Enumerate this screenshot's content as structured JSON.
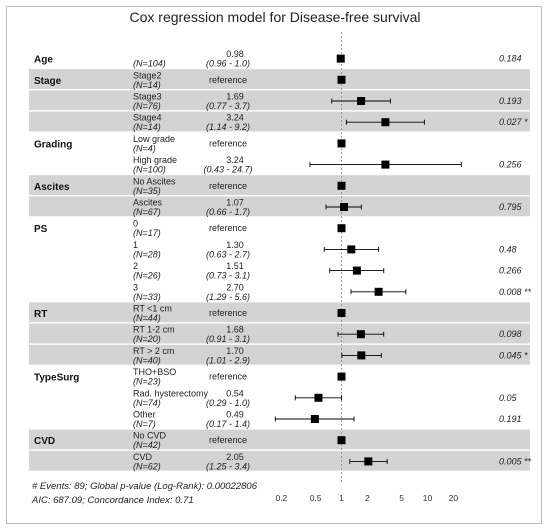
{
  "chart_data": {
    "type": "forest",
    "title": "Cox regression model for Disease-free survival",
    "x_scale": "log",
    "xlim": [
      0.2,
      20
    ],
    "x_ticks": [
      {
        "value": 0.2,
        "label": "0.2"
      },
      {
        "value": 0.5,
        "label": "0.5"
      },
      {
        "value": 1,
        "label": "1"
      },
      {
        "value": 2,
        "label": "2"
      },
      {
        "value": 5,
        "label": "5"
      },
      {
        "value": 10,
        "label": "10"
      },
      {
        "value": 20,
        "label": "20"
      }
    ],
    "reference_line": 1,
    "marker_color": "#000000",
    "stripe_color": "#d3d3d3",
    "rows": [
      {
        "variable": "Age",
        "level": "",
        "n": "(N=104)",
        "hr_text": "0.98",
        "ci_text": "(0.96 -  1.0)",
        "hr": 0.98,
        "lo": 0.96,
        "hi": 1.0,
        "p": "0.184",
        "stripe": false
      },
      {
        "variable": "Stage",
        "level": "Stage2",
        "n": "(N=14)",
        "hr_text": "reference",
        "ci_text": "",
        "hr": 1,
        "lo": null,
        "hi": null,
        "p": "",
        "stripe": true
      },
      {
        "variable": "",
        "level": "Stage3",
        "n": "(N=76)",
        "hr_text": "1.69",
        "ci_text": "(0.77 -  3.7)",
        "hr": 1.69,
        "lo": 0.77,
        "hi": 3.7,
        "p": "0.193",
        "stripe": true
      },
      {
        "variable": "",
        "level": "Stage4",
        "n": "(N=14)",
        "hr_text": "3.24",
        "ci_text": "(1.14 -  9.2)",
        "hr": 3.24,
        "lo": 1.14,
        "hi": 9.2,
        "p": "0.027 *",
        "stripe": true
      },
      {
        "variable": "Grading",
        "level": "Low grade",
        "n": "(N=4)",
        "hr_text": "reference",
        "ci_text": "",
        "hr": 1,
        "lo": null,
        "hi": null,
        "p": "",
        "stripe": false
      },
      {
        "variable": "",
        "level": "High grade",
        "n": "(N=100)",
        "hr_text": "3.24",
        "ci_text": "(0.43 - 24.7)",
        "hr": 3.24,
        "lo": 0.43,
        "hi": 24.7,
        "p": "0.256",
        "stripe": false
      },
      {
        "variable": "Ascites",
        "level": "No Ascites",
        "n": "(N=35)",
        "hr_text": "reference",
        "ci_text": "",
        "hr": 1,
        "lo": null,
        "hi": null,
        "p": "",
        "stripe": true
      },
      {
        "variable": "",
        "level": "Ascites",
        "n": "(N=67)",
        "hr_text": "1.07",
        "ci_text": "(0.66 -  1.7)",
        "hr": 1.07,
        "lo": 0.66,
        "hi": 1.7,
        "p": "0.795",
        "stripe": true
      },
      {
        "variable": "PS",
        "level": "0",
        "n": "(N=17)",
        "hr_text": "reference",
        "ci_text": "",
        "hr": 1,
        "lo": null,
        "hi": null,
        "p": "",
        "stripe": false
      },
      {
        "variable": "",
        "level": "1",
        "n": "(N=28)",
        "hr_text": "1.30",
        "ci_text": "(0.63 -  2.7)",
        "hr": 1.3,
        "lo": 0.63,
        "hi": 2.7,
        "p": "0.48",
        "stripe": false
      },
      {
        "variable": "",
        "level": "2",
        "n": "(N=26)",
        "hr_text": "1.51",
        "ci_text": "(0.73 -  3.1)",
        "hr": 1.51,
        "lo": 0.73,
        "hi": 3.1,
        "p": "0.266",
        "stripe": false
      },
      {
        "variable": "",
        "level": "3",
        "n": "(N=33)",
        "hr_text": "2.70",
        "ci_text": "(1.29 -  5.6)",
        "hr": 2.7,
        "lo": 1.29,
        "hi": 5.6,
        "p": "0.008 **",
        "stripe": false
      },
      {
        "variable": "RT",
        "level": "RT <1 cm",
        "n": "(N=44)",
        "hr_text": "reference",
        "ci_text": "",
        "hr": 1,
        "lo": null,
        "hi": null,
        "p": "",
        "stripe": true
      },
      {
        "variable": "",
        "level": "RT 1-2 cm",
        "n": "(N=20)",
        "hr_text": "1.68",
        "ci_text": "(0.91 -  3.1)",
        "hr": 1.68,
        "lo": 0.91,
        "hi": 3.1,
        "p": "0.098",
        "stripe": true
      },
      {
        "variable": "",
        "level": "RT > 2 cm",
        "n": "(N=40)",
        "hr_text": "1.70",
        "ci_text": "(1.01 -  2.9)",
        "hr": 1.7,
        "lo": 1.01,
        "hi": 2.9,
        "p": "0.045 *",
        "stripe": true
      },
      {
        "variable": "TypeSurg",
        "level": "THO+BSO",
        "n": "(N=23)",
        "hr_text": "reference",
        "ci_text": "",
        "hr": 1,
        "lo": null,
        "hi": null,
        "p": "",
        "stripe": false
      },
      {
        "variable": "",
        "level": "Rad. hysterectomy",
        "n": "(N=74)",
        "hr_text": "0.54",
        "ci_text": "(0.29 -  1.0)",
        "hr": 0.54,
        "lo": 0.29,
        "hi": 1.0,
        "p": "0.05",
        "stripe": false
      },
      {
        "variable": "",
        "level": "Other",
        "n": "(N=7)",
        "hr_text": "0.49",
        "ci_text": "(0.17 -  1.4)",
        "hr": 0.49,
        "lo": 0.17,
        "hi": 1.4,
        "p": "0.191",
        "stripe": false
      },
      {
        "variable": "CVD",
        "level": "No CVD",
        "n": "(N=42)",
        "hr_text": "reference",
        "ci_text": "",
        "hr": 1,
        "lo": null,
        "hi": null,
        "p": "",
        "stripe": true
      },
      {
        "variable": "",
        "level": "CVD",
        "n": "(N=62)",
        "hr_text": "2.05",
        "ci_text": "(1.25 -  3.4)",
        "hr": 2.05,
        "lo": 1.25,
        "hi": 3.4,
        "p": "0.005 **",
        "stripe": true
      }
    ],
    "footnote_line1": "# Events: 89; Global p-value (Log-Rank): 0.00022806",
    "footnote_line2": "AIC: 687.09; Concordance Index: 0.71"
  }
}
